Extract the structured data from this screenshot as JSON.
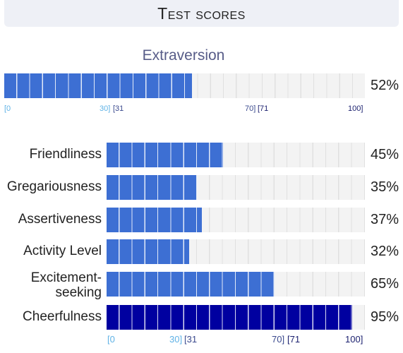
{
  "header": {
    "title": "Test scores"
  },
  "extraversion": {
    "label": "Extraversion",
    "value": 52,
    "percent_text": "52%"
  },
  "scale": {
    "ticks": [
      "[0",
      "30]",
      "[31",
      "70]",
      "[71",
      "100]"
    ]
  },
  "facets": [
    {
      "label": "Friendliness",
      "value": 45,
      "percent_text": "45%",
      "highlight": false
    },
    {
      "label": "Gregariousness",
      "value": 35,
      "percent_text": "35%",
      "highlight": false
    },
    {
      "label": "Assertiveness",
      "value": 37,
      "percent_text": "37%",
      "highlight": false
    },
    {
      "label": "Activity Level",
      "value": 32,
      "percent_text": "32%",
      "highlight": false
    },
    {
      "label": "Excitement-\nseeking",
      "value": 65,
      "percent_text": "65%",
      "highlight": false
    },
    {
      "label": "Cheerfulness",
      "value": 95,
      "percent_text": "95%",
      "highlight": true
    }
  ],
  "colors": {
    "bar_fill": "#3d6fd3",
    "bar_fill_highlight": "#0000a0",
    "track": "#f3f3f3",
    "title_accent": "#575c88",
    "tick_low": "#5fb2e6",
    "tick_mid": "#3b4a8e",
    "tick_high": "#1a1f6e"
  }
}
